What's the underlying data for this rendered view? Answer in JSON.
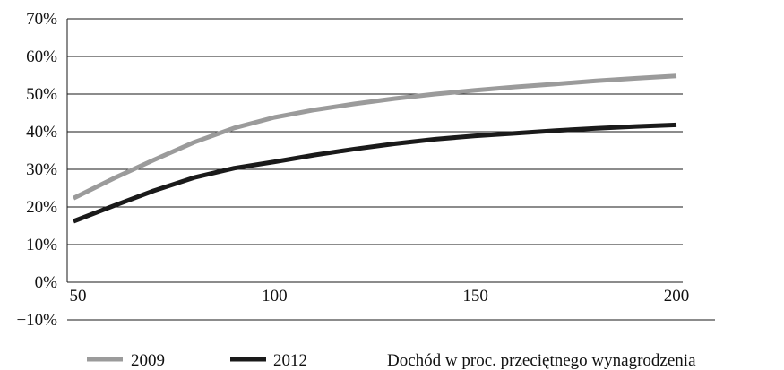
{
  "chart_data": {
    "type": "line",
    "title": "",
    "xlabel": "Dochód w proc. przeciętnego wynagrodzenia",
    "ylabel": "",
    "xlim": [
      50,
      200
    ],
    "ylim": [
      -10,
      70
    ],
    "x_ticks": [
      50,
      100,
      150,
      200
    ],
    "x_tick_labels": [
      "50",
      "100",
      "150",
      "200"
    ],
    "y_ticks": [
      -10,
      0,
      10,
      20,
      30,
      40,
      50,
      60,
      70
    ],
    "y_tick_labels": [
      "−10%",
      "0%",
      "10%",
      "20%",
      "30%",
      "40%",
      "50%",
      "60%",
      "70%"
    ],
    "grid": "horizontal",
    "legend_position": "bottom",
    "series": [
      {
        "name": "2009",
        "color": "#9b9b9b",
        "x": [
          50,
          60,
          70,
          80,
          90,
          100,
          110,
          120,
          130,
          140,
          150,
          160,
          170,
          180,
          190,
          200
        ],
        "y": [
          22.3,
          27.6,
          32.5,
          37.2,
          41.0,
          43.8,
          45.8,
          47.4,
          48.8,
          50.0,
          51.0,
          51.9,
          52.7,
          53.5,
          54.2,
          54.8
        ]
      },
      {
        "name": "2012",
        "color": "#1a1a1a",
        "x": [
          50,
          60,
          70,
          80,
          90,
          100,
          110,
          120,
          130,
          140,
          150,
          160,
          170,
          180,
          190,
          200
        ],
        "y": [
          16.2,
          20.3,
          24.3,
          27.8,
          30.3,
          32.0,
          33.8,
          35.4,
          36.8,
          38.0,
          38.9,
          39.6,
          40.3,
          40.9,
          41.4,
          41.8
        ]
      }
    ]
  }
}
